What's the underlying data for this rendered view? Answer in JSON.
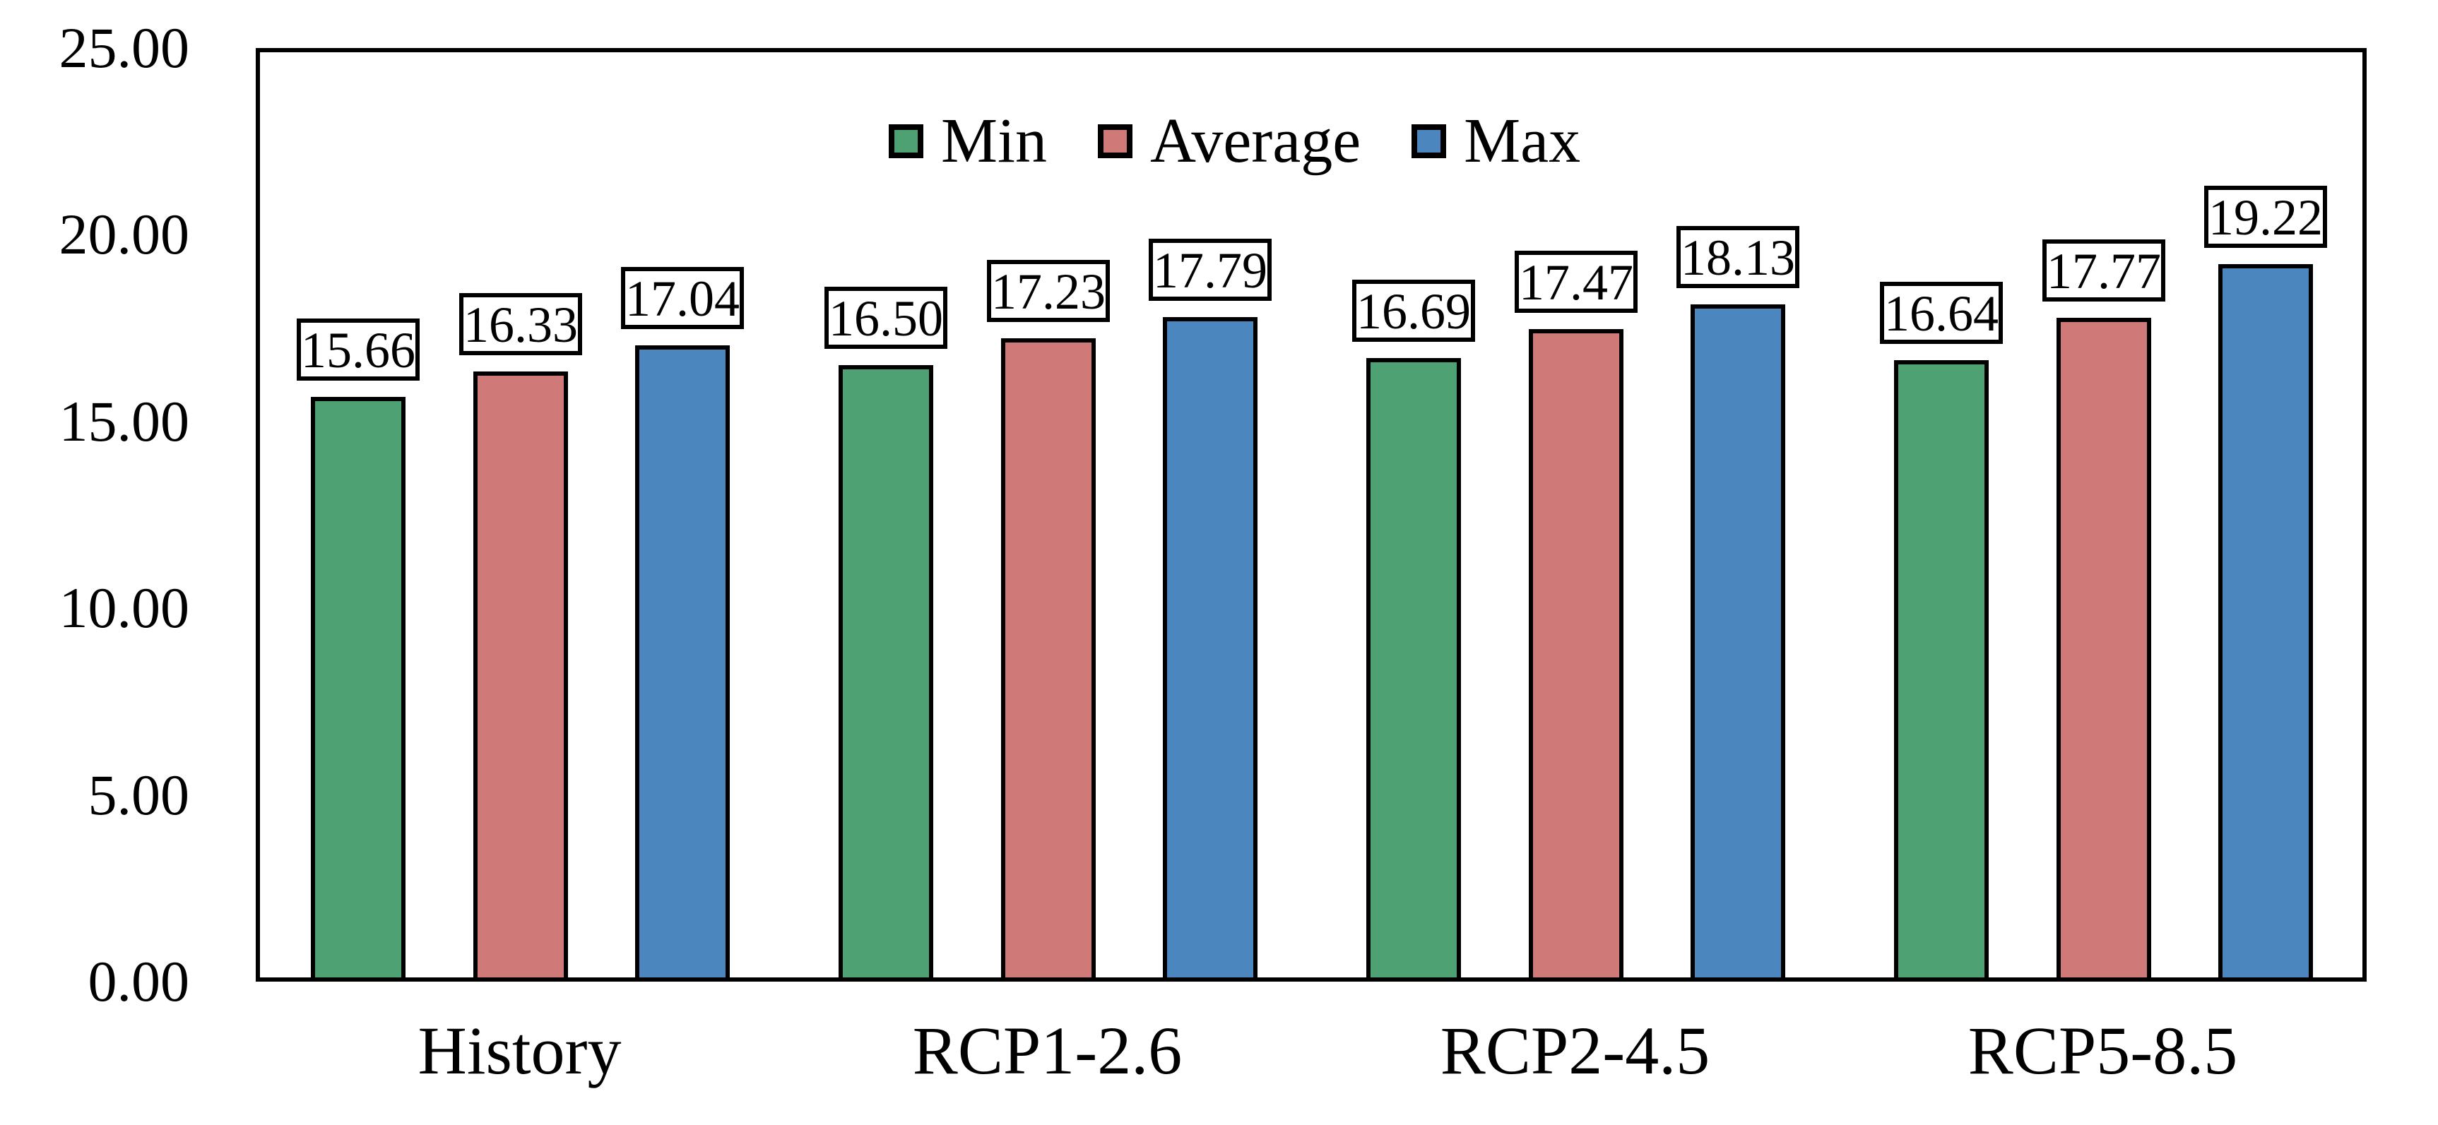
{
  "chart_data": {
    "type": "bar",
    "categories": [
      "History",
      "RCP1-2.6",
      "RCP2-4.5",
      "RCP5-8.5"
    ],
    "series": [
      {
        "name": "Min",
        "color": "#4EA172",
        "values": [
          15.66,
          16.5,
          16.69,
          16.64
        ]
      },
      {
        "name": "Average",
        "color": "#CF7A78",
        "values": [
          16.33,
          17.23,
          17.47,
          17.77
        ]
      },
      {
        "name": "Max",
        "color": "#4B86BE",
        "values": [
          17.04,
          17.79,
          18.13,
          19.22
        ]
      }
    ],
    "y_ticks": [
      "25.00",
      "20.00",
      "15.00",
      "10.00",
      "5.00",
      "0.00"
    ],
    "ylim": [
      0,
      25
    ],
    "xlabel": "",
    "ylabel": "",
    "title": "",
    "grid": false,
    "legend_position": "top-center",
    "data_label_style": "boxed, two decimals, above bar",
    "bar_border_color": "#000000",
    "plot_border_color": "#000000",
    "background_color": "#FFFFFF"
  }
}
